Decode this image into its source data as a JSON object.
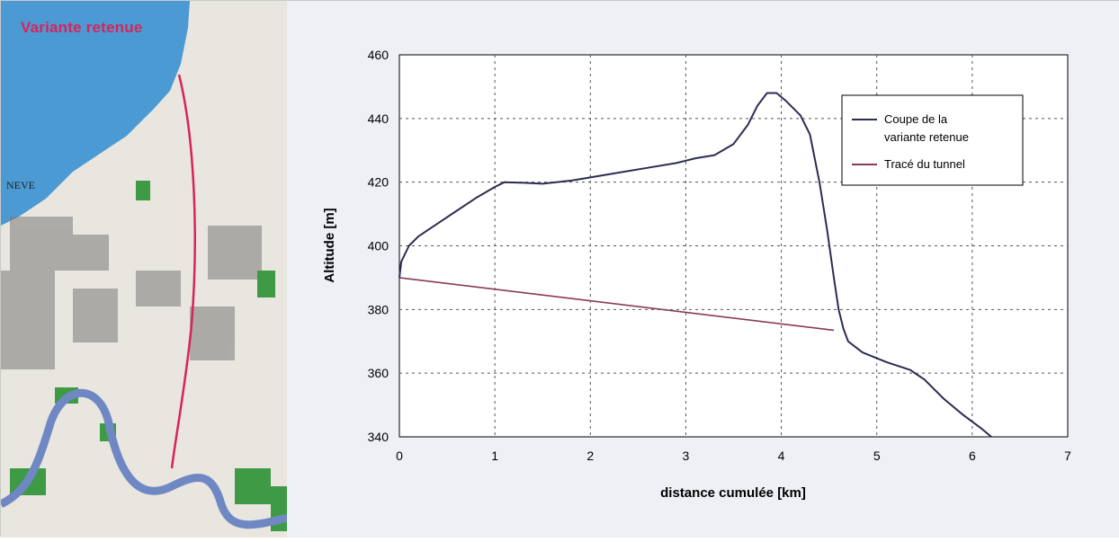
{
  "map": {
    "title": "Variante retenue",
    "place_label": "NEVE",
    "colors": {
      "lake": "#4b9ad3",
      "route": "#d7245a",
      "river": "#6f88c4",
      "forest": "#3f9a46",
      "land": "#e9e6df"
    }
  },
  "chart_data": {
    "type": "line",
    "xlabel": "distance cumulée [km]",
    "ylabel": "Altitude [m]",
    "xlim": [
      0,
      7
    ],
    "ylim": [
      340,
      460
    ],
    "xticks": [
      0,
      1,
      2,
      3,
      4,
      5,
      6,
      7
    ],
    "yticks": [
      340,
      360,
      380,
      400,
      420,
      440,
      460
    ],
    "grid": true,
    "legend_position": "top-right",
    "series": [
      {
        "name": "Coupe de la variante retenue",
        "color": "#2b2d52",
        "points": [
          [
            0.0,
            390
          ],
          [
            0.02,
            395
          ],
          [
            0.1,
            400
          ],
          [
            0.2,
            403
          ],
          [
            0.4,
            407
          ],
          [
            0.6,
            411
          ],
          [
            0.8,
            415
          ],
          [
            1.0,
            418.5
          ],
          [
            1.1,
            420
          ],
          [
            1.3,
            419.8
          ],
          [
            1.5,
            419.5
          ],
          [
            1.8,
            420.5
          ],
          [
            2.0,
            421.5
          ],
          [
            2.3,
            423
          ],
          [
            2.6,
            424.5
          ],
          [
            2.9,
            426
          ],
          [
            3.1,
            427.5
          ],
          [
            3.3,
            428.5
          ],
          [
            3.5,
            432
          ],
          [
            3.65,
            438
          ],
          [
            3.75,
            444
          ],
          [
            3.85,
            448
          ],
          [
            3.95,
            448
          ],
          [
            4.05,
            445.5
          ],
          [
            4.2,
            441
          ],
          [
            4.3,
            435
          ],
          [
            4.4,
            420
          ],
          [
            4.48,
            405
          ],
          [
            4.55,
            390
          ],
          [
            4.6,
            380
          ],
          [
            4.65,
            374
          ],
          [
            4.7,
            370
          ],
          [
            4.85,
            366.5
          ],
          [
            5.1,
            363.5
          ],
          [
            5.35,
            361
          ],
          [
            5.5,
            358
          ],
          [
            5.7,
            352
          ],
          [
            5.9,
            347
          ],
          [
            6.1,
            342.5
          ],
          [
            6.2,
            340
          ]
        ]
      },
      {
        "name": "Tracé du tunnel",
        "color": "#8a3a56",
        "points": [
          [
            0.0,
            390
          ],
          [
            4.55,
            373.5
          ]
        ]
      }
    ]
  }
}
